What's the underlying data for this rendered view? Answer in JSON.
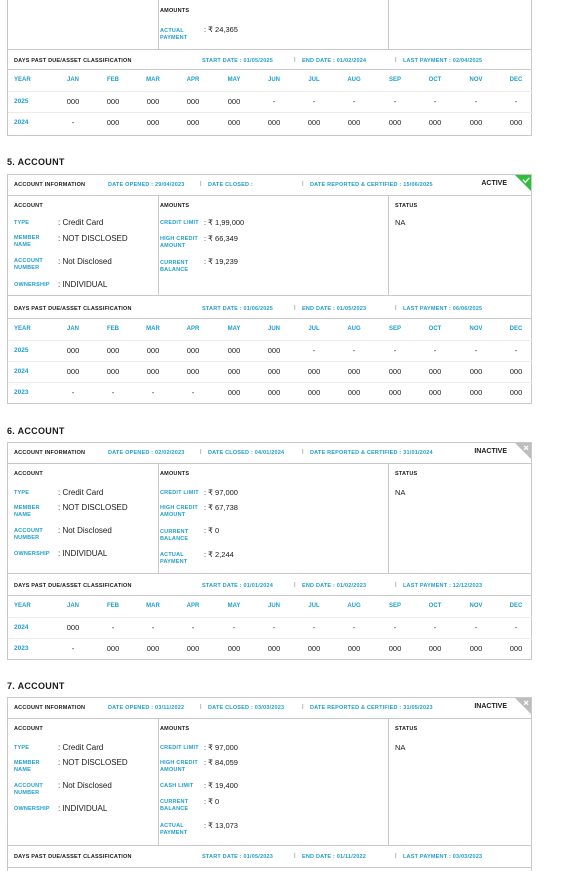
{
  "months_header": [
    "YEAR",
    "JAN",
    "FEB",
    "MAR",
    "APR",
    "MAY",
    "JUN",
    "JUL",
    "AUG",
    "SEP",
    "OCT",
    "NOV",
    "DEC"
  ],
  "top_card": {
    "amounts_label": "AMOUNTS",
    "actual_payment_label": "ACTUAL PAYMENT",
    "actual_payment_value": ": ₹ 24,365",
    "dpd_label": "DAYS PAST DUE/ASSET CLASSIFICATION",
    "start_date": "START DATE : 01/05/2025",
    "end_date": "END DATE : 01/02/2024",
    "last_payment": "LAST PAYMENT : 02/04/2025",
    "rows": [
      {
        "year": "2025",
        "cells": [
          "000",
          "000",
          "000",
          "000",
          "000",
          "-",
          "-",
          "-",
          "-",
          "-",
          "-",
          "-"
        ]
      },
      {
        "year": "2024",
        "cells": [
          "-",
          "000",
          "000",
          "000",
          "000",
          "000",
          "000",
          "000",
          "000",
          "000",
          "000",
          "000"
        ]
      }
    ]
  },
  "accounts": [
    {
      "title": "5. ACCOUNT",
      "info_label": "ACCOUNT INFORMATION",
      "date_opened": "DATE OPENED : 29/04/2023",
      "date_closed": "DATE CLOSED :",
      "date_reported": "DATE REPORTED & CERTIFIED : 15/06/2025",
      "status_word": "ACTIVE",
      "account_header": "ACCOUNT",
      "amounts_header": "AMOUNTS",
      "status_header": "STATUS",
      "status_value": "NA",
      "fields": [
        {
          "label": "TYPE",
          "value": ": Credit Card"
        },
        {
          "label": "MEMBER NAME",
          "value": ": NOT DISCLOSED"
        },
        {
          "label": "ACCOUNT NUMBER",
          "value": ": Not Disclosed"
        },
        {
          "label": "OWNERSHIP",
          "value": ": INDIVIDUAL"
        }
      ],
      "amounts": [
        {
          "label": "CREDIT LIMIT",
          "value": ": ₹ 1,99,000"
        },
        {
          "label": "HIGH CREDIT AMOUNT",
          "value": ": ₹ 66,349"
        },
        {
          "label": "CURRENT BALANCE",
          "value": ": ₹ 19,239"
        }
      ],
      "dpd_label": "DAYS PAST DUE/ASSET CLASSIFICATION",
      "start_date": "START DATE : 01/06/2025",
      "end_date": "END DATE : 01/05/2023",
      "last_payment": "LAST PAYMENT : 06/06/2025",
      "rows": [
        {
          "year": "2025",
          "cells": [
            "000",
            "000",
            "000",
            "000",
            "000",
            "000",
            "-",
            "-",
            "-",
            "-",
            "-",
            "-"
          ]
        },
        {
          "year": "2024",
          "cells": [
            "000",
            "000",
            "000",
            "000",
            "000",
            "000",
            "000",
            "000",
            "000",
            "000",
            "000",
            "000"
          ]
        },
        {
          "year": "2023",
          "cells": [
            "-",
            "-",
            "-",
            "-",
            "000",
            "000",
            "000",
            "000",
            "000",
            "000",
            "000",
            "000"
          ]
        }
      ]
    },
    {
      "title": "6. ACCOUNT",
      "info_label": "ACCOUNT INFORMATION",
      "date_opened": "DATE OPENED : 02/02/2023",
      "date_closed": "DATE CLOSED : 04/01/2024",
      "date_reported": "DATE REPORTED & CERTIFIED : 31/01/2024",
      "status_word": "INACTIVE",
      "account_header": "ACCOUNT",
      "amounts_header": "AMOUNTS",
      "status_header": "STATUS",
      "status_value": "NA",
      "fields": [
        {
          "label": "TYPE",
          "value": ": Credit Card"
        },
        {
          "label": "MEMBER NAME",
          "value": ": NOT DISCLOSED"
        },
        {
          "label": "ACCOUNT NUMBER",
          "value": ": Not Disclosed"
        },
        {
          "label": "OWNERSHIP",
          "value": ": INDIVIDUAL"
        }
      ],
      "amounts": [
        {
          "label": "CREDIT LIMIT",
          "value": ": ₹ 97,000"
        },
        {
          "label": "HIGH CREDIT AMOUNT",
          "value": ": ₹ 67,738"
        },
        {
          "label": "CURRENT BALANCE",
          "value": ": ₹ 0"
        },
        {
          "label": "ACTUAL PAYMENT",
          "value": ": ₹ 2,244"
        }
      ],
      "dpd_label": "DAYS PAST DUE/ASSET CLASSIFICATION",
      "start_date": "START DATE : 01/01/2024",
      "end_date": "END DATE : 01/02/2023",
      "last_payment": "LAST PAYMENT : 12/12/2023",
      "rows": [
        {
          "year": "2024",
          "cells": [
            "000",
            "-",
            "-",
            "-",
            "-",
            "-",
            "-",
            "-",
            "-",
            "-",
            "-",
            "-"
          ]
        },
        {
          "year": "2023",
          "cells": [
            "-",
            "000",
            "000",
            "000",
            "000",
            "000",
            "000",
            "000",
            "000",
            "000",
            "000",
            "000"
          ]
        }
      ]
    },
    {
      "title": "7. ACCOUNT",
      "info_label": "ACCOUNT INFORMATION",
      "date_opened": "DATE OPENED : 03/11/2022",
      "date_closed": "DATE CLOSED : 03/03/2023",
      "date_reported": "DATE REPORTED & CERTIFIED : 31/05/2023",
      "status_word": "INACTIVE",
      "account_header": "ACCOUNT",
      "amounts_header": "AMOUNTS",
      "status_header": "STATUS",
      "status_value": "NA",
      "fields": [
        {
          "label": "TYPE",
          "value": ": Credit Card"
        },
        {
          "label": "MEMBER NAME",
          "value": ": NOT DISCLOSED"
        },
        {
          "label": "ACCOUNT NUMBER",
          "value": ": Not Disclosed"
        },
        {
          "label": "OWNERSHIP",
          "value": ": INDIVIDUAL"
        }
      ],
      "amounts": [
        {
          "label": "CREDIT LIMIT",
          "value": ": ₹ 97,000"
        },
        {
          "label": "HIGH CREDIT AMOUNT",
          "value": ": ₹ 84,059"
        },
        {
          "label": "CASH LIMIT",
          "value": ": ₹ 19,400"
        },
        {
          "label": "CURRENT BALANCE",
          "value": ": ₹ 0"
        },
        {
          "label": "ACTUAL PAYMENT",
          "value": ": ₹ 13,073"
        }
      ],
      "dpd_label": "DAYS PAST DUE/ASSET CLASSIFICATION",
      "start_date": "START DATE : 01/05/2023",
      "end_date": "END DATE : 01/11/2022",
      "last_payment": "LAST PAYMENT : 03/03/2023",
      "rows": []
    }
  ]
}
